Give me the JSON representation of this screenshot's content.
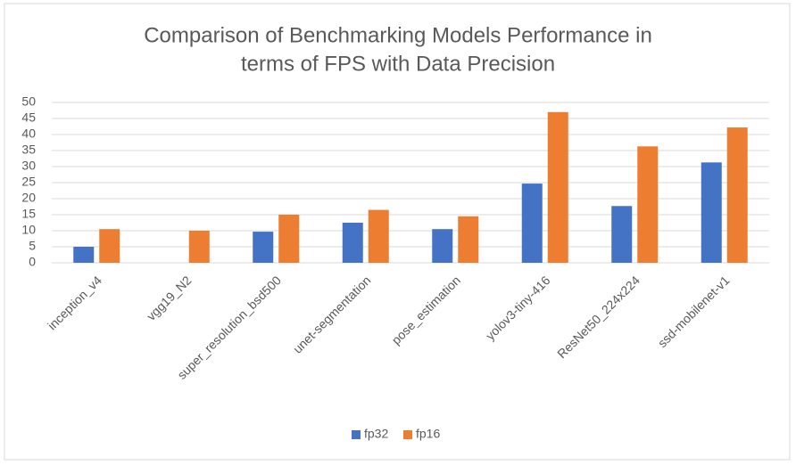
{
  "chart_data": {
    "type": "bar",
    "title": [
      "Comparison of Benchmarking Models Performance in",
      "terms of FPS with Data Precision"
    ],
    "categories": [
      "inception_v4",
      "vgg19_N2",
      "super_resolution_bsd500",
      "unet-segmentation",
      "pose_estimation",
      "yolov3-tiny-416",
      "ResNet50_224x224",
      "ssd-mobilenet-v1"
    ],
    "series": [
      {
        "name": "fp32",
        "color": "#4472c4",
        "values": [
          5,
          null,
          9.7,
          12.5,
          10.5,
          24.7,
          17.7,
          31.3
        ]
      },
      {
        "name": "fp16",
        "color": "#ed7d31",
        "values": [
          10.5,
          10,
          15,
          16.5,
          14.5,
          47,
          36.3,
          42.2
        ]
      }
    ],
    "ylim": [
      0,
      50
    ],
    "yticks": [
      0,
      5,
      10,
      15,
      20,
      25,
      30,
      35,
      40,
      45,
      50
    ],
    "grid": true,
    "legend": "bottom"
  }
}
